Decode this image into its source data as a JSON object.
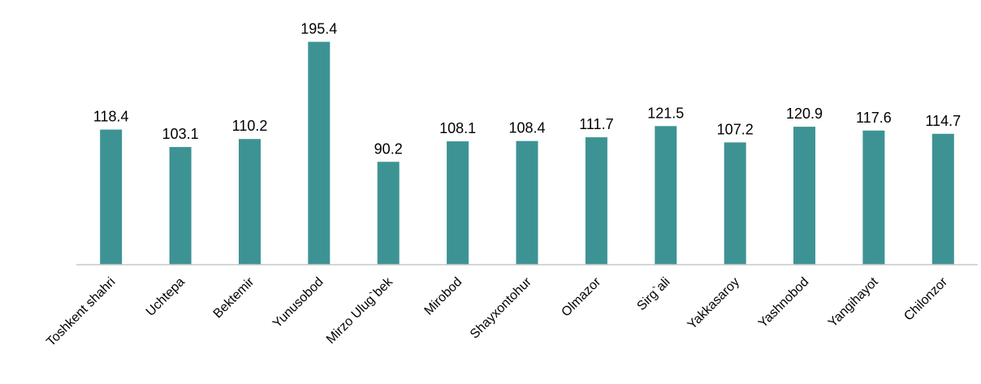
{
  "chart_data": {
    "type": "bar",
    "categories": [
      "Toshkent shahri",
      "Uchtepa",
      "Bektemir",
      "Yunusobod",
      "Mirzo Ulug`bek",
      "Mirobod",
      "Shayxontohur",
      "Olmazor",
      "Sirg`ali",
      "Yakkasaroy",
      "Yashnobod",
      "Yangihayot",
      "Chilonzor"
    ],
    "values": [
      118.4,
      103.1,
      110.2,
      195.4,
      90.2,
      108.1,
      108.4,
      111.7,
      121.5,
      107.2,
      120.9,
      117.6,
      114.7
    ],
    "data_labels": [
      "118.4",
      "103.1",
      "110.2",
      "195.4",
      "90.2",
      "108.1",
      "108.4",
      "111.7",
      "121.5",
      "107.2",
      "120.9",
      "117.6",
      "114.7"
    ],
    "title": "",
    "xlabel": "",
    "ylabel": "",
    "ylim": [
      0,
      200
    ],
    "grid": false,
    "legend": "none",
    "bar_color": "#3d9394",
    "axis_color": "#c8c8c8"
  }
}
